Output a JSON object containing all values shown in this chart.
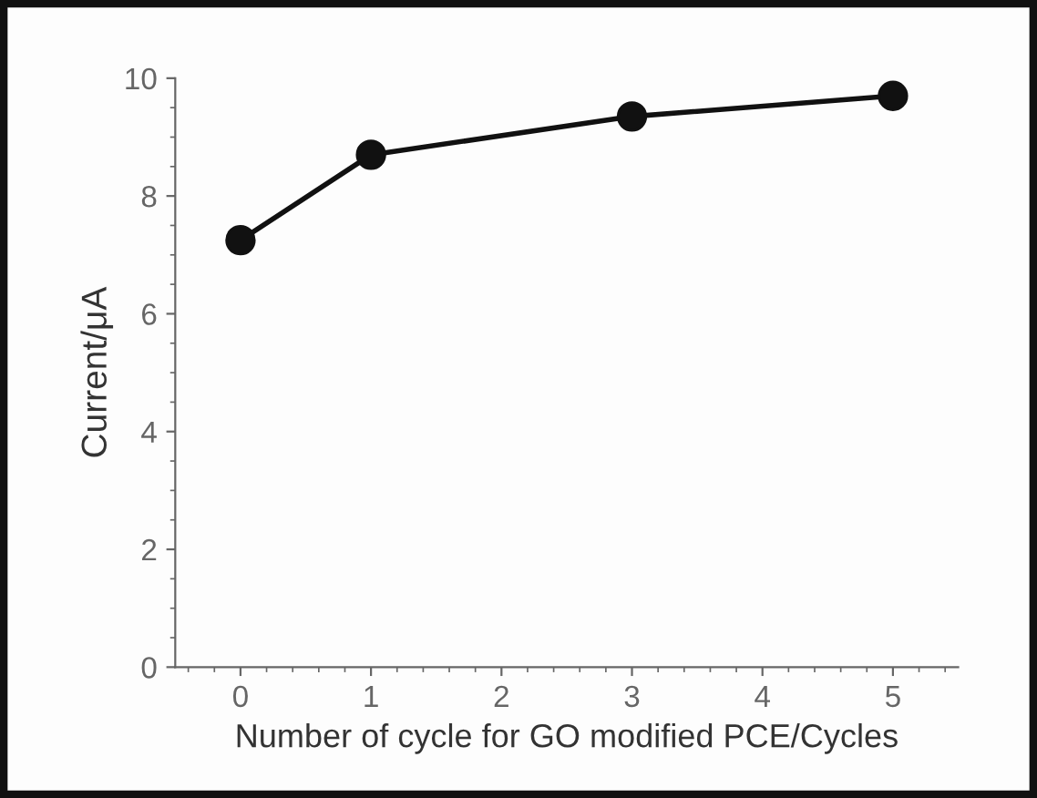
{
  "chart_data": {
    "type": "line",
    "xlabel": "Number of cycle for GO modified PCE/Cycles",
    "ylabel": "Current/μA",
    "x": [
      0,
      1,
      3,
      5
    ],
    "series": [
      {
        "color": "#111111",
        "values": [
          7.25,
          8.7,
          9.35,
          9.7
        ]
      }
    ],
    "xlim": [
      -0.5,
      5.5
    ],
    "xticks": [
      0,
      1,
      2,
      3,
      4,
      5
    ],
    "ylim": [
      0,
      10
    ],
    "yticks": [
      0,
      2,
      4,
      6,
      8,
      10
    ],
    "marker": "circle",
    "line_style": "solid",
    "grid": false,
    "legend": false
  }
}
